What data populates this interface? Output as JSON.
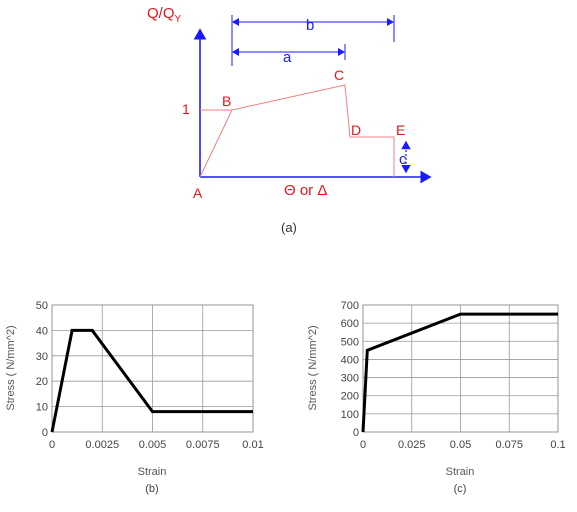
{
  "diagram_a": {
    "y_axis_label": "Q/Q",
    "y_axis_sub": "Y",
    "x_axis_label": "Θ or Δ",
    "point_labels": [
      "A",
      "B",
      "C",
      "D",
      "E"
    ],
    "y_one": "1",
    "dim_a": "a",
    "dim_b": "b",
    "dim_c": "c",
    "caption": "(a)",
    "colors": {
      "curve": "#f08080",
      "labels": "#e8141c",
      "dims": "#1a1aff"
    }
  },
  "chart_data": [
    {
      "type": "line",
      "caption": "(b)",
      "xlabel": "Strain",
      "ylabel": "Stress ( N/mm^2)",
      "xlim": [
        0,
        0.01
      ],
      "ylim": [
        0,
        50
      ],
      "x_ticks": [
        0,
        0.0025,
        0.005,
        0.0075,
        0.01
      ],
      "x_tick_labels": [
        "0",
        "0.0025",
        "0.005",
        "0.0075",
        "0.01"
      ],
      "y_ticks": [
        0,
        10,
        20,
        30,
        40,
        50
      ],
      "y_tick_labels": [
        "0",
        "10",
        "20",
        "30",
        "40",
        "50"
      ],
      "grid": true,
      "series": [
        {
          "x": [
            0,
            0.001,
            0.002,
            0.005,
            0.01
          ],
          "y": [
            0,
            40,
            40,
            8,
            8
          ]
        }
      ]
    },
    {
      "type": "line",
      "caption": "(c)",
      "xlabel": "Strain",
      "ylabel": "Stress ( N/mm^2)",
      "xlim": [
        0,
        0.1
      ],
      "ylim": [
        0,
        700
      ],
      "x_ticks": [
        0,
        0.025,
        0.05,
        0.075,
        0.1
      ],
      "x_tick_labels": [
        "0",
        "0.025",
        "0.05",
        "0.075",
        "0.1"
      ],
      "y_ticks": [
        0,
        100,
        200,
        300,
        400,
        500,
        600,
        700
      ],
      "y_tick_labels": [
        "0",
        "100",
        "200",
        "300",
        "400",
        "500",
        "600",
        "700"
      ],
      "grid": true,
      "series": [
        {
          "x": [
            0,
            0.0022,
            0.05,
            0.1
          ],
          "y": [
            0,
            450,
            650,
            650
          ]
        }
      ]
    }
  ]
}
